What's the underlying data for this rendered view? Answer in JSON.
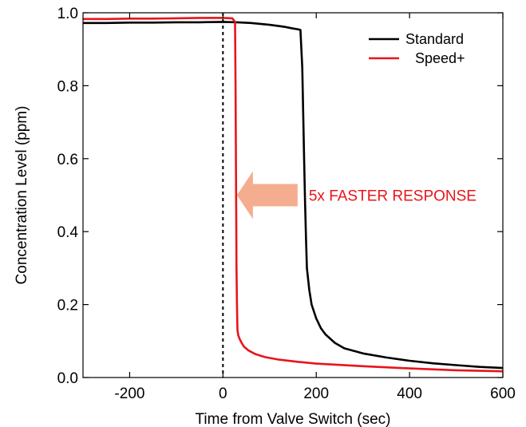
{
  "chart_data": {
    "type": "line",
    "title": "",
    "xlabel": "Time from Valve Switch (sec)",
    "ylabel": "Concentration Level (ppm)",
    "xlim": [
      -300,
      600
    ],
    "ylim": [
      0,
      1.0
    ],
    "xticks": [
      -200,
      0,
      200,
      400,
      600
    ],
    "yticks": [
      0.0,
      0.2,
      0.4,
      0.6,
      0.8,
      1.0
    ],
    "xtick_labels": [
      "-200",
      "0",
      "200",
      "400",
      "600"
    ],
    "ytick_labels": [
      "0.0",
      "0.2",
      "0.4",
      "0.6",
      "0.8",
      "1.0"
    ],
    "grid": false,
    "legend_position": "top-right",
    "vline": {
      "x": 0,
      "style": "dashed",
      "color": "#000000"
    },
    "series": [
      {
        "name": "Standard",
        "color": "#000000",
        "x": [
          -300,
          -250,
          -200,
          -150,
          -100,
          -50,
          0,
          30,
          60,
          100,
          130,
          150,
          160,
          166,
          170,
          172,
          174,
          176,
          178,
          180,
          185,
          190,
          200,
          210,
          220,
          240,
          260,
          300,
          350,
          400,
          450,
          500,
          550,
          600
        ],
        "y": [
          0.972,
          0.972,
          0.973,
          0.973,
          0.974,
          0.974,
          0.975,
          0.974,
          0.972,
          0.967,
          0.962,
          0.957,
          0.955,
          0.953,
          0.85,
          0.72,
          0.6,
          0.48,
          0.38,
          0.3,
          0.24,
          0.2,
          0.162,
          0.135,
          0.118,
          0.095,
          0.08,
          0.066,
          0.055,
          0.046,
          0.039,
          0.034,
          0.029,
          0.026
        ]
      },
      {
        "name": "Speed+",
        "color": "#e8151b",
        "x": [
          -300,
          -250,
          -200,
          -150,
          -100,
          -50,
          0,
          20,
          26,
          27,
          28,
          29,
          30,
          31,
          33,
          36,
          40,
          45,
          55,
          70,
          90,
          120,
          160,
          200,
          300,
          400,
          500,
          600
        ],
        "y": [
          0.983,
          0.983,
          0.984,
          0.984,
          0.985,
          0.986,
          0.986,
          0.985,
          0.975,
          0.8,
          0.55,
          0.3,
          0.2,
          0.13,
          0.115,
          0.105,
          0.095,
          0.085,
          0.074,
          0.064,
          0.056,
          0.049,
          0.043,
          0.038,
          0.031,
          0.025,
          0.02,
          0.017
        ]
      }
    ],
    "annotation": {
      "text": "5x FASTER RESPONSE",
      "color": "#e8151b",
      "arrow_color": "#f4ad8e",
      "arrow_direction": "left",
      "arrow_x": [
        30,
        160
      ],
      "arrow_y": 0.5
    }
  }
}
